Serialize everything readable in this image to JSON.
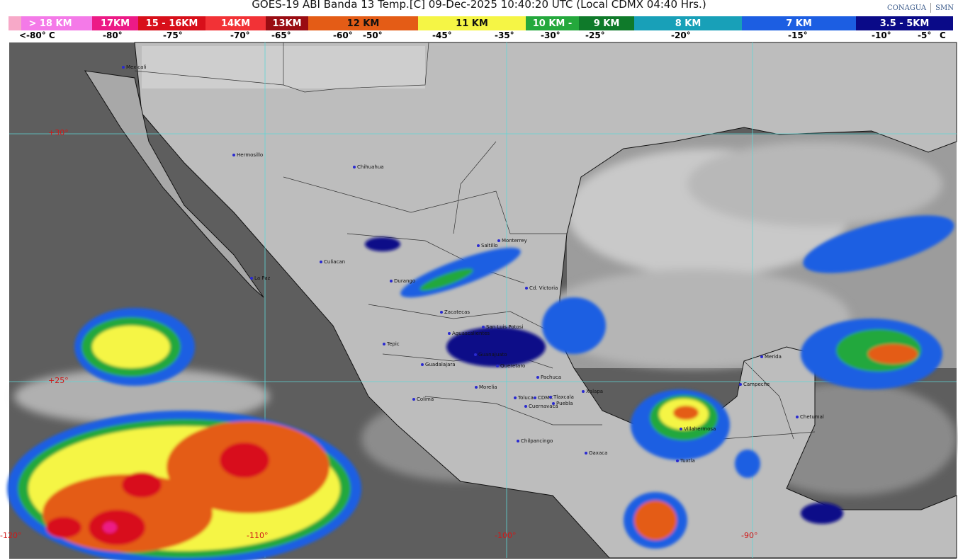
{
  "header": {
    "title": "GOES-19 ABI Banda 13 Temp.[C] 09-Dec-2025 10:40:20 UTC (Local CDMX  04:40 Hrs.)",
    "logos": [
      "CONAGUA",
      "SMN"
    ]
  },
  "legend": {
    "segments": [
      {
        "label": "> 18 KM",
        "color": "#f47ae8"
      },
      {
        "label": "17KM",
        "color": "#ec1a86"
      },
      {
        "label": "15 - 16KM",
        "color": "#d80f1a"
      },
      {
        "label": "14KM",
        "color": "#f23236"
      },
      {
        "label": "13KM",
        "color": "#9a0c12"
      },
      {
        "label": "12 KM",
        "color": "#e45c16"
      },
      {
        "label": "11 KM",
        "color": "#f5f545"
      },
      {
        "label": "10 KM -",
        "color": "#24a83c"
      },
      {
        "label": "9 KM",
        "color": "#0f7a2a"
      },
      {
        "label": "8 KM",
        "color": "#18a0b8"
      },
      {
        "label": "7 KM",
        "color": "#1c5ee2"
      },
      {
        "label": "3.5 - 5KM",
        "color": "#0a0a88"
      }
    ],
    "temperatures": [
      "<-80° C",
      "-80°",
      "-75°",
      "-70°",
      "-65°",
      "-60°",
      "-50°",
      "-45°",
      "-35°",
      "-30°",
      "-25°",
      "-20°",
      "-15°",
      "-10°",
      "-5°",
      "C"
    ]
  },
  "map": {
    "grid_labels": {
      "lat30": "+30°",
      "lat25": "+25°",
      "lon120": "-120°",
      "lon110": "-110°",
      "lon100": "-100°",
      "lon90": "-90°"
    },
    "cities": [
      "Mexicali",
      "Hermosillo",
      "Chihuahua",
      "La Paz",
      "Culiacan",
      "Durango",
      "Saltillo",
      "Monterrey",
      "Cd. Victoria",
      "Zacatecas",
      "San Luis Potosi",
      "Aguascalientes",
      "Tepic",
      "Guadalajara",
      "Guanajuato",
      "Queretaro",
      "Pachuca",
      "Morelia",
      "Colima",
      "Toluca",
      "CDMX",
      "Tlaxcala",
      "Puebla",
      "Cuernavaca",
      "Xalapa",
      "Chilpancingo",
      "Oaxaca",
      "Villahermosa",
      "Tuxtla",
      "Campeche",
      "Merida",
      "Chetumal"
    ]
  }
}
